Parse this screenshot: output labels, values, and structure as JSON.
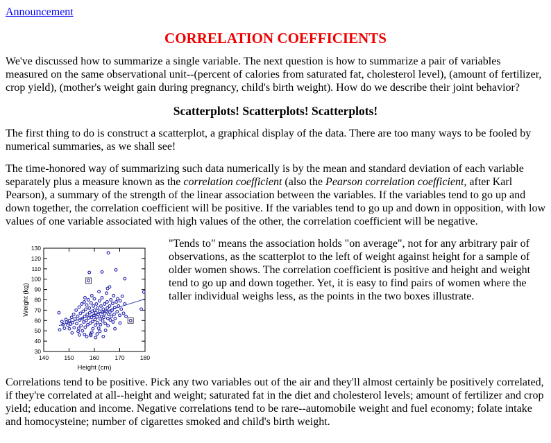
{
  "colors": {
    "heading_red": "#ee0000",
    "link_blue": "#0000ee",
    "point_navy": "#2222aa",
    "trend_line": "#3344aa",
    "box_marker": "#444444",
    "axis_black": "#000000"
  },
  "header": {
    "announcement_label": "Announcement",
    "title": "CORRELATION COEFFICIENTS"
  },
  "headings": {
    "scatterplots": "Scatterplots! Scatterplots! Scatterplots!"
  },
  "paragraphs": {
    "intro": "We've discussed how to summarize a single variable. The next question is how to summarize a pair of variables measured on the same observational unit--(percent of calories from saturated fat, cholesterol level), (amount of fertilizer, crop yield), (mother's weight gain during pregnancy, child's birth weight). How do we describe their joint behavior?",
    "first_thing": "The first thing to do is construct a scatterplot, a graphical display of the data. There are too many ways to be fooled by numerical summaries, as we shall see!",
    "time_honored_parts": [
      "The time-honored way of summarizing such data numerically is by the mean and standard deviation of each variable separately plus a measure known as the ",
      "correlation coefficient",
      " (also the ",
      "Pearson correlation coefficient,",
      " after Karl Pearson), a summary of the strength of the linear association between the variables. If the variables tend to go up and down together, the correlation coefficient will be positive. If the variables tend to go up and down in opposition, with low values of one variable associated with high values of the other, the correlation coefficient will be negative."
    ],
    "tends_to": "\"Tends to\" means the association holds \"on average\", not for any arbitrary pair of observations, as the scatterplot to the left of weight against height for a sample of older women shows. The correlation coefficient is positive and height and weight tend to go up and down together. Yet, it is easy to find pairs of women where the taller individual weighs less, as the points in the two boxes illustrate.",
    "bottom": "Correlations tend to be positive. Pick any two variables out of the air and they'll almost certainly be positively correlated, if they're correlated at all--height and weight; saturated fat in the diet and cholesterol levels; amount of fertilizer and crop yield; education and income. Negative correlations tend to be rare--automobile weight and fuel economy; folate intake and homocysteine; number of cigarettes smoked and child's birth weight."
  },
  "chart_data": {
    "type": "scatter",
    "title": "",
    "xlabel": "Height (cm)",
    "ylabel": "Weight (kg)",
    "xlim": [
      140,
      180
    ],
    "ylim": [
      30,
      130
    ],
    "xticks": [
      140,
      150,
      160,
      170,
      180
    ],
    "yticks": [
      30,
      40,
      50,
      60,
      70,
      80,
      90,
      100,
      110,
      120,
      130
    ],
    "grid": false,
    "legend": "none",
    "marker": "open-circle",
    "trend_line": {
      "x1": 146,
      "y1": 55,
      "x2": 180,
      "y2": 80.8
    },
    "boxed_points": [
      [
        157.7,
        98.5
      ],
      [
        174.3,
        60
      ]
    ],
    "points": [
      [
        165.5,
        125.5
      ],
      [
        158,
        106.5
      ],
      [
        163,
        107
      ],
      [
        168.5,
        109
      ],
      [
        172,
        100.5
      ],
      [
        179.5,
        87.5
      ],
      [
        178.5,
        71
      ],
      [
        146,
        67.5
      ],
      [
        146.3,
        51
      ],
      [
        148.2,
        52.5
      ],
      [
        157,
        44.5
      ],
      [
        160.5,
        43.5
      ],
      [
        163.5,
        44.5
      ],
      [
        166,
        92.5
      ],
      [
        165.2,
        91
      ],
      [
        164.8,
        86.5
      ],
      [
        161.8,
        88
      ],
      [
        171,
        83.5
      ],
      [
        159,
        84
      ],
      [
        156.3,
        82
      ],
      [
        149.5,
        55.5
      ],
      [
        150.2,
        60
      ],
      [
        150.6,
        56.5
      ],
      [
        151,
        63
      ],
      [
        151.4,
        58
      ],
      [
        151.8,
        66
      ],
      [
        152,
        53
      ],
      [
        152.4,
        61.5
      ],
      [
        152.8,
        70
      ],
      [
        153,
        57
      ],
      [
        153.4,
        64
      ],
      [
        153.6,
        49.5
      ],
      [
        154,
        73
      ],
      [
        154.2,
        60.5
      ],
      [
        154.5,
        67
      ],
      [
        154.7,
        55
      ],
      [
        155,
        76
      ],
      [
        155.2,
        62
      ],
      [
        155.3,
        50
      ],
      [
        155.6,
        69
      ],
      [
        155.8,
        58.5
      ],
      [
        156,
        78
      ],
      [
        156.2,
        64
      ],
      [
        156.4,
        53.5
      ],
      [
        156.6,
        71
      ],
      [
        156.8,
        60
      ],
      [
        157,
        75
      ],
      [
        157.2,
        66
      ],
      [
        157.4,
        56
      ],
      [
        157.6,
        80
      ],
      [
        157.8,
        62.5
      ],
      [
        158,
        72
      ],
      [
        158.2,
        67.5
      ],
      [
        158.4,
        57.5
      ],
      [
        158.5,
        47
      ],
      [
        158.7,
        77
      ],
      [
        158.9,
        63
      ],
      [
        159.1,
        69
      ],
      [
        159.3,
        59
      ],
      [
        159.4,
        52
      ],
      [
        159.6,
        74
      ],
      [
        159.8,
        65
      ],
      [
        160,
        81
      ],
      [
        160.1,
        70
      ],
      [
        160.3,
        61
      ],
      [
        160.4,
        55.5
      ],
      [
        160.6,
        67.5
      ],
      [
        160.8,
        76
      ],
      [
        161,
        63.5
      ],
      [
        161.2,
        58
      ],
      [
        161.3,
        72
      ],
      [
        161.5,
        66
      ],
      [
        161.7,
        52.5
      ],
      [
        162,
        79
      ],
      [
        162.1,
        69
      ],
      [
        162.3,
        61.5
      ],
      [
        162.4,
        56
      ],
      [
        162.6,
        74
      ],
      [
        162.8,
        64
      ],
      [
        163,
        82
      ],
      [
        163.1,
        68
      ],
      [
        163.3,
        59.5
      ],
      [
        163.5,
        71
      ],
      [
        163.7,
        63
      ],
      [
        164,
        76
      ],
      [
        164.1,
        66.5
      ],
      [
        164.3,
        57
      ],
      [
        164.4,
        50.5
      ],
      [
        164.6,
        69
      ],
      [
        165,
        78
      ],
      [
        165.1,
        72
      ],
      [
        165.3,
        62
      ],
      [
        165.4,
        55
      ],
      [
        165.6,
        66
      ],
      [
        166,
        74
      ],
      [
        166.1,
        68
      ],
      [
        166.3,
        60.5
      ],
      [
        166.5,
        80
      ],
      [
        166.7,
        64
      ],
      [
        167,
        70
      ],
      [
        167.2,
        76.5
      ],
      [
        167.4,
        58.5
      ],
      [
        167.6,
        84
      ],
      [
        167.8,
        66
      ],
      [
        168,
        72.5
      ],
      [
        168.2,
        62
      ],
      [
        168.6,
        78
      ],
      [
        169,
        68.5
      ],
      [
        169.2,
        81
      ],
      [
        169.5,
        74
      ],
      [
        170,
        65
      ],
      [
        170.2,
        79
      ],
      [
        170.6,
        71
      ],
      [
        171.5,
        67
      ],
      [
        172,
        76
      ],
      [
        172.5,
        64
      ],
      [
        151.2,
        48
      ],
      [
        154.1,
        46
      ],
      [
        158.6,
        45.5
      ],
      [
        161.1,
        47
      ],
      [
        168.1,
        52
      ],
      [
        170.1,
        57.5
      ],
      [
        147.6,
        56
      ],
      [
        149,
        58.5
      ],
      [
        150.1,
        52
      ],
      [
        153.8,
        52.5
      ],
      [
        156.1,
        46.5
      ],
      [
        159,
        48.5
      ],
      [
        162.2,
        49.5
      ],
      [
        148.8,
        61
      ],
      [
        147.2,
        59
      ]
    ]
  }
}
